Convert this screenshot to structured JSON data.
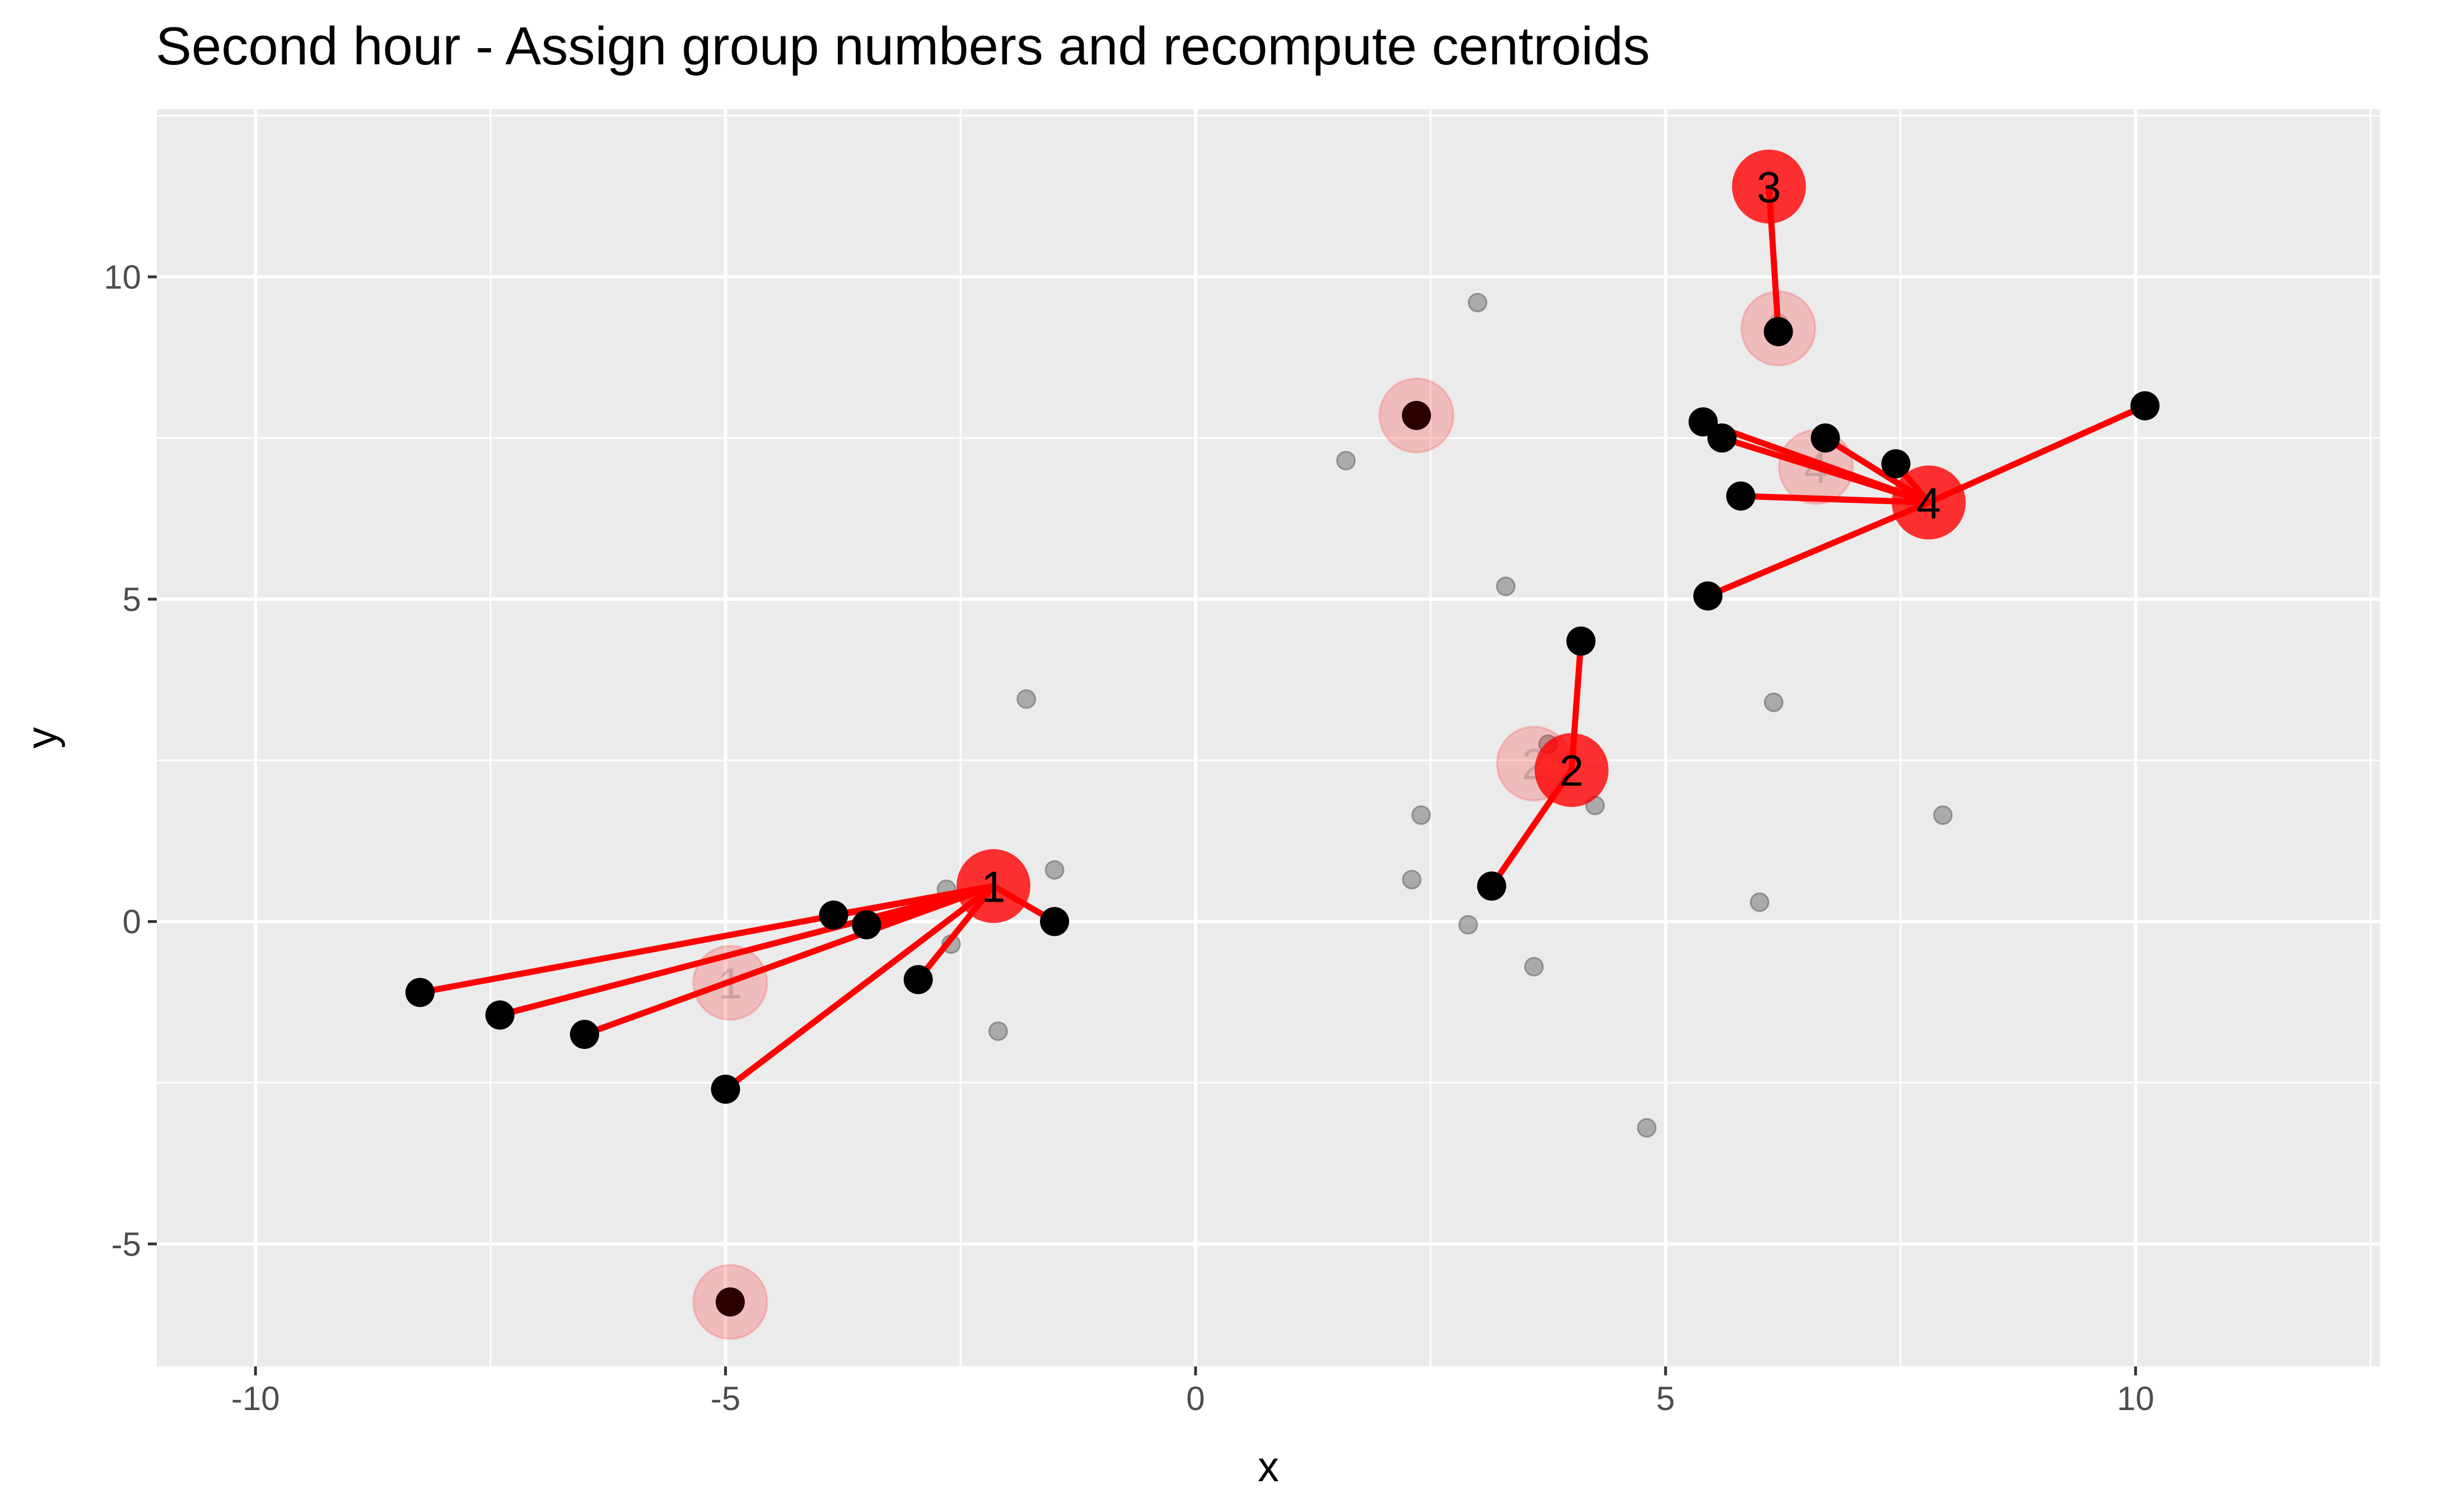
{
  "chart_data": {
    "type": "scatter",
    "title": "Second hour - Assign group numbers and recompute centroids",
    "xlabel": "x",
    "ylabel": "y",
    "xlim": [
      -11.05,
      12.6
    ],
    "ylim": [
      -6.9,
      12.6
    ],
    "x_ticks": [
      -10,
      -5,
      0,
      5,
      10
    ],
    "x_tick_labels": [
      "-10",
      "-5",
      "0",
      "5",
      "10"
    ],
    "y_ticks": [
      -5,
      0,
      5,
      10
    ],
    "y_tick_labels": [
      "-5",
      "0",
      "5",
      "10"
    ],
    "grid": true,
    "legend": "none",
    "colors": {
      "panel": "#ebebeb",
      "grid": "#ffffff",
      "background_points": "#7f7f7f",
      "assigned_points": "#000000",
      "links": "#ff0000",
      "centroid_new": "#ff0000",
      "centroid_old": "#e8a0a0",
      "tick_text": "#4d4d4d"
    },
    "background_points": [
      [
        3.0,
        9.6
      ],
      [
        1.6,
        7.15
      ],
      [
        3.3,
        5.2
      ],
      [
        -1.8,
        3.45
      ],
      [
        6.15,
        3.4
      ],
      [
        3.75,
        2.75
      ],
      [
        4.25,
        1.8
      ],
      [
        2.4,
        1.65
      ],
      [
        7.95,
        1.65
      ],
      [
        -1.5,
        0.8
      ],
      [
        -2.65,
        0.5
      ],
      [
        2.3,
        0.65
      ],
      [
        6.0,
        0.3
      ],
      [
        2.9,
        -0.05
      ],
      [
        -2.6,
        -0.35
      ],
      [
        3.6,
        -0.7
      ],
      [
        -2.1,
        -1.7
      ],
      [
        4.8,
        -3.2
      ]
    ],
    "unassigned_points": [
      [
        2.35,
        7.85
      ],
      [
        -4.95,
        -5.9
      ]
    ],
    "clusters": [
      {
        "label": "1",
        "old_centroid": [
          -4.95,
          -0.95
        ],
        "new_centroid": [
          -2.15,
          0.55
        ],
        "points": [
          [
            -8.25,
            -1.1
          ],
          [
            -7.4,
            -1.45
          ],
          [
            -6.5,
            -1.75
          ],
          [
            -5.0,
            -2.6
          ],
          [
            -3.85,
            0.1
          ],
          [
            -3.5,
            -0.05
          ],
          [
            -2.95,
            -0.9
          ],
          [
            -1.5,
            0.0
          ]
        ]
      },
      {
        "label": "2",
        "old_centroid": [
          3.6,
          2.45
        ],
        "new_centroid": [
          4.0,
          2.35
        ],
        "points": [
          [
            4.1,
            4.35
          ],
          [
            3.15,
            0.55
          ]
        ]
      },
      {
        "label": "3",
        "old_centroid": [
          6.2,
          9.2
        ],
        "new_centroid": [
          6.1,
          11.4
        ],
        "points": [
          [
            6.2,
            9.15
          ]
        ]
      },
      {
        "label": "4",
        "old_centroid": [
          6.6,
          7.05
        ],
        "new_centroid": [
          7.8,
          6.5
        ],
        "points": [
          [
            5.4,
            7.75
          ],
          [
            5.6,
            7.5
          ],
          [
            6.7,
            7.5
          ],
          [
            7.45,
            7.1
          ],
          [
            5.8,
            6.6
          ],
          [
            5.45,
            5.05
          ],
          [
            10.1,
            8.0
          ]
        ]
      }
    ]
  }
}
